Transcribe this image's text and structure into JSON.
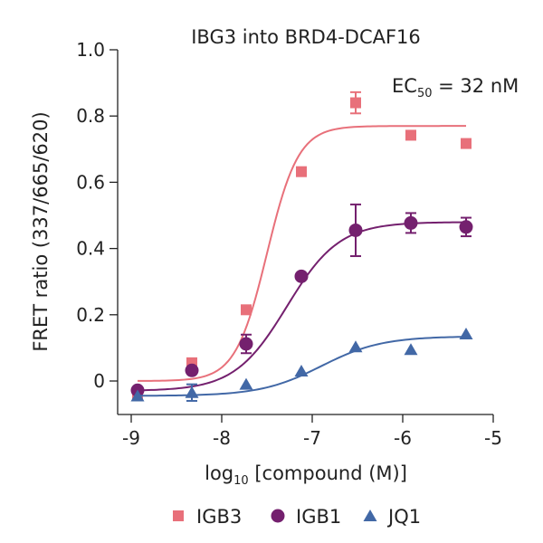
{
  "chart_data": {
    "type": "scatter",
    "title": "IBG3 into BRD4-DCAF16",
    "xlabel_main": "log",
    "xlabel_sub": "10",
    "xlabel_rest": " [compound (M)]",
    "ylabel": "FRET ratio (337/665/620)",
    "xlim": [
      -9,
      -5
    ],
    "ylim": [
      -0.1,
      1.0
    ],
    "x_ticks": [
      -9,
      -8,
      -7,
      -6,
      -5
    ],
    "x_tick_labels": [
      "-9",
      "-8",
      "-7",
      "-6",
      "-5"
    ],
    "y_ticks": [
      0,
      0.2,
      0.4,
      0.6,
      0.8,
      1.0
    ],
    "y_tick_labels": [
      "0",
      "0.2",
      "0.4",
      "0.6",
      "0.8",
      "1.0"
    ],
    "annotation": {
      "main": "EC",
      "sub": "50",
      "rest": " = 32 nM"
    },
    "legend_position": "bottom",
    "series": [
      {
        "name": "IGB3",
        "marker": "square",
        "color": "#e8707a",
        "x": [
          -8.93,
          -8.33,
          -7.73,
          -7.12,
          -6.52,
          -5.91,
          -5.3
        ],
        "y": [
          -0.04,
          0.055,
          0.215,
          0.632,
          0.84,
          0.742,
          0.717
        ],
        "err": [
          0.0,
          0.0,
          0.0,
          0.0,
          0.032,
          0.0,
          0.0
        ],
        "fit": {
          "bottom": 0.0,
          "top": 0.77,
          "ec50_log": -7.5,
          "hill": 2.5
        }
      },
      {
        "name": "IGB1",
        "marker": "circle",
        "color": "#74206e",
        "x": [
          -8.93,
          -8.33,
          -7.73,
          -7.12,
          -6.52,
          -5.91,
          -5.3
        ],
        "y": [
          -0.028,
          0.032,
          0.112,
          0.316,
          0.455,
          0.477,
          0.465
        ],
        "err": [
          0.0,
          0.0,
          0.028,
          0.0,
          0.078,
          0.03,
          0.028
        ],
        "fit": {
          "bottom": -0.03,
          "top": 0.48,
          "ec50_log": -7.28,
          "hill": 1.5
        }
      },
      {
        "name": "JQ1",
        "marker": "triangle",
        "color": "#4268a6",
        "x": [
          -8.93,
          -8.33,
          -7.73,
          -7.12,
          -6.52,
          -5.91,
          -5.3
        ],
        "y": [
          -0.045,
          -0.035,
          -0.01,
          0.03,
          0.103,
          0.095,
          0.142
        ],
        "err": [
          0.0,
          0.025,
          0.0,
          0.0,
          0.0,
          0.0,
          0.0
        ],
        "fit": {
          "bottom": -0.045,
          "top": 0.135,
          "ec50_log": -6.9,
          "hill": 1.3
        }
      }
    ]
  }
}
